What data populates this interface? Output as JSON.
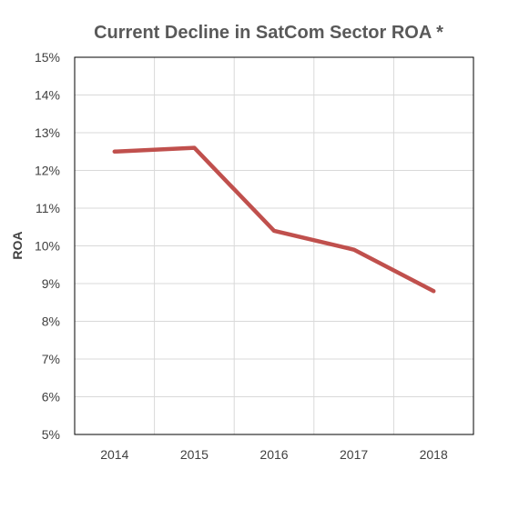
{
  "chart_data": {
    "type": "line",
    "title": "Current Decline in SatCom Sector ROA *",
    "xlabel": "",
    "ylabel": "ROA",
    "categories": [
      "2014",
      "2015",
      "2016",
      "2017",
      "2018"
    ],
    "series": [
      {
        "values": [
          12.5,
          12.6,
          10.4,
          9.9,
          8.8
        ],
        "color": "#C0504D"
      }
    ],
    "ylim": [
      5,
      15
    ],
    "y_ticks": [
      "15%",
      "14%",
      "13%",
      "12%",
      "11%",
      "10%",
      "9%",
      "8%",
      "7%",
      "6%",
      "5%"
    ],
    "grid": "both",
    "legend": "none"
  }
}
